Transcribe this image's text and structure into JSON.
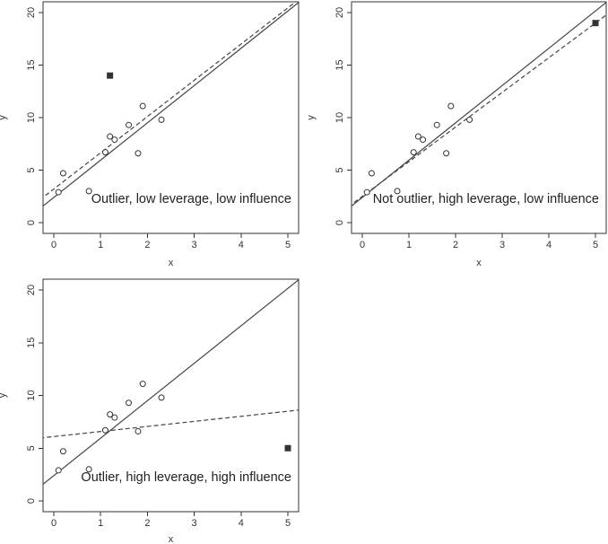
{
  "chart_data": [
    {
      "type": "scatter",
      "xlabel": "x",
      "ylabel": "y",
      "xlim": [
        0,
        5
      ],
      "ylim": [
        0,
        20
      ],
      "xticks": [
        "0",
        "1",
        "2",
        "3",
        "4",
        "5"
      ],
      "yticks": [
        "0",
        "5",
        "10",
        "15",
        "20"
      ],
      "annotation": "Outlier, low leverage, low influence",
      "points": {
        "x": [
          0.1,
          0.2,
          0.75,
          1.1,
          1.2,
          1.3,
          1.6,
          1.8,
          1.9,
          2.3
        ],
        "y": [
          2.9,
          4.7,
          3.0,
          6.7,
          8.2,
          7.9,
          9.3,
          6.6,
          11.1,
          9.8
        ]
      },
      "special_point": {
        "x": 1.2,
        "y": 14.0
      },
      "fit_solid": {
        "intercept": 2.4,
        "slope": 3.55
      },
      "fit_dashed": {
        "intercept": 3.2,
        "slope": 3.45
      },
      "label_position": "bottom-right"
    },
    {
      "type": "scatter",
      "xlabel": "x",
      "ylabel": "y",
      "xlim": [
        0,
        5
      ],
      "ylim": [
        0,
        20
      ],
      "xticks": [
        "0",
        "1",
        "2",
        "3",
        "4",
        "5"
      ],
      "yticks": [
        "0",
        "5",
        "10",
        "15",
        "20"
      ],
      "annotation": "Not outlier, high leverage, low influence",
      "points": {
        "x": [
          0.1,
          0.2,
          0.75,
          1.1,
          1.2,
          1.3,
          1.6,
          1.8,
          1.9,
          2.3
        ],
        "y": [
          2.9,
          4.7,
          3.0,
          6.7,
          8.2,
          7.9,
          9.3,
          6.6,
          11.1,
          9.8
        ]
      },
      "special_point": {
        "x": 5.0,
        "y": 19.0
      },
      "fit_solid": {
        "intercept": 2.4,
        "slope": 3.55
      },
      "fit_dashed": {
        "intercept": 2.5,
        "slope": 3.3
      },
      "label_position": "bottom-right"
    },
    {
      "type": "scatter",
      "xlabel": "x",
      "ylabel": "y",
      "xlim": [
        0,
        5
      ],
      "ylim": [
        0,
        20
      ],
      "xticks": [
        "0",
        "1",
        "2",
        "3",
        "4",
        "5"
      ],
      "yticks": [
        "0",
        "5",
        "10",
        "15",
        "20"
      ],
      "annotation": "Outlier, high leverage, high influence",
      "points": {
        "x": [
          0.1,
          0.2,
          0.75,
          1.1,
          1.2,
          1.3,
          1.6,
          1.8,
          1.9,
          2.3
        ],
        "y": [
          2.9,
          4.7,
          3.0,
          6.7,
          8.2,
          7.9,
          9.3,
          6.6,
          11.1,
          9.8
        ]
      },
      "special_point": {
        "x": 5.0,
        "y": 5.0
      },
      "fit_solid": {
        "intercept": 2.4,
        "slope": 3.55
      },
      "fit_dashed": {
        "intercept": 6.1,
        "slope": 0.48
      },
      "label_position": "bottom-right"
    }
  ]
}
